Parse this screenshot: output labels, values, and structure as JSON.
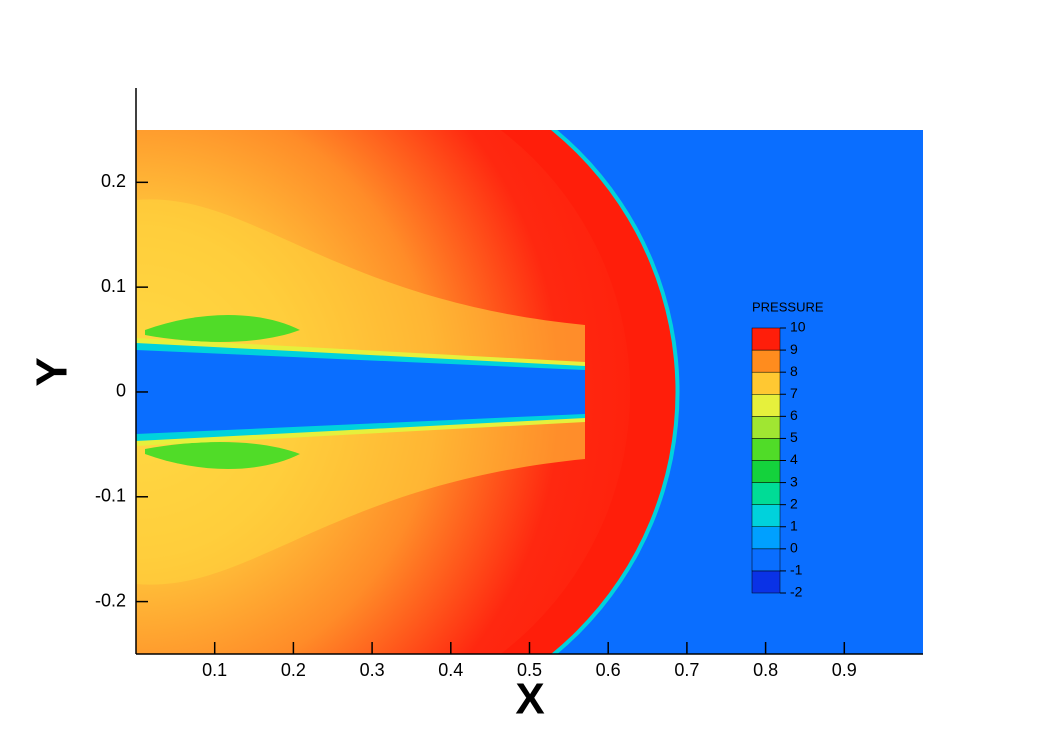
{
  "chart_data": {
    "type": "contour",
    "x_label": "X",
    "y_label": "Y",
    "xlim": [
      0,
      1
    ],
    "ylim": [
      -0.25,
      0.29
    ],
    "xticks": [
      0.1,
      0.2,
      0.3,
      0.4,
      0.5,
      0.6,
      0.7,
      0.8,
      0.9
    ],
    "yticks": [
      -0.2,
      -0.1,
      0,
      0.1,
      0.2
    ],
    "colorbar": {
      "title": "PRESSURE",
      "levels": [
        -2,
        -1,
        0,
        1,
        2,
        3,
        4,
        5,
        6,
        7,
        8,
        9,
        10
      ],
      "colors": [
        "#0a32e6",
        "#0a6eff",
        "#00a0ff",
        "#00d2dc",
        "#00dc96",
        "#14d23c",
        "#50dc28",
        "#a0e632",
        "#e6f03c",
        "#ffc832",
        "#ff8c1e",
        "#ff1e0a"
      ]
    }
  }
}
